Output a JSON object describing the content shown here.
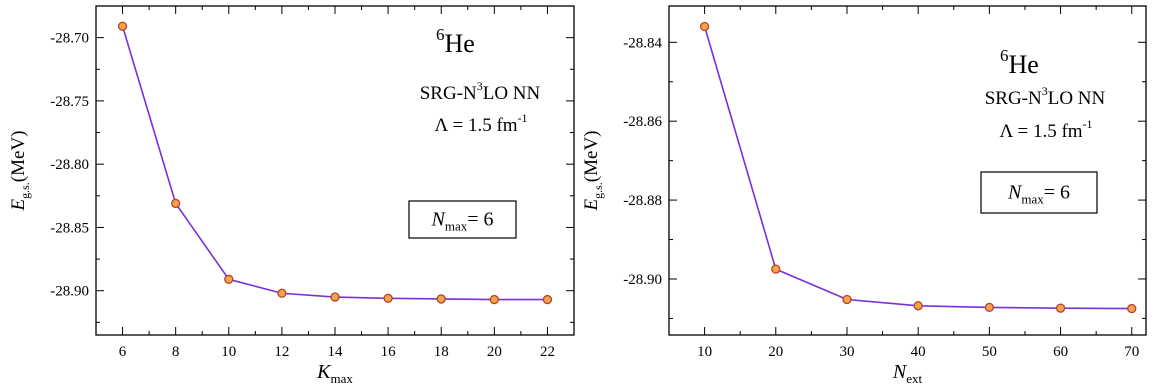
{
  "chart_data": [
    {
      "type": "line",
      "ylabel": {
        "main": "E",
        "sub": "g.s.",
        "unit": "(MeV)"
      },
      "xlabel": {
        "main": "K",
        "sub": "max"
      },
      "x": [
        6,
        8,
        10,
        12,
        14,
        16,
        18,
        20,
        22
      ],
      "y": [
        -28.691,
        -28.831,
        -28.891,
        -28.902,
        -28.905,
        -28.906,
        -28.9065,
        -28.907,
        -28.907
      ],
      "xlim": [
        5,
        23
      ],
      "ylim": [
        -28.935,
        -28.675
      ],
      "xticks": [
        6,
        8,
        10,
        12,
        14,
        16,
        18,
        20,
        22
      ],
      "xtick_labels": [
        "6",
        "8",
        "10",
        "12",
        "14",
        "16",
        "18",
        "20",
        "22"
      ],
      "yticks": [
        -28.7,
        -28.75,
        -28.8,
        -28.85,
        -28.9
      ],
      "ytick_labels": [
        "-28.70",
        "-28.75",
        "-28.80",
        "-28.85",
        "-28.90"
      ],
      "line_color": "#7b2fd8",
      "marker_fill": "#f5a34a",
      "marker_edge": "#b5442a",
      "annotations": {
        "nucleus_mass": "6",
        "nucleus_symbol": "He",
        "interaction_a": "SRG-N",
        "interaction_sup": "3",
        "interaction_b": "LO NN",
        "lambda_text": "Λ = 1.5 fm",
        "lambda_sup": "-1",
        "nmax_main": "N",
        "nmax_sub": "max",
        "nmax_value": "= 6"
      }
    },
    {
      "type": "line",
      "ylabel": {
        "main": "E",
        "sub": "g.s.",
        "unit": "(MeV)"
      },
      "xlabel": {
        "main": "N",
        "sub": "ext"
      },
      "x": [
        10,
        20,
        30,
        40,
        50,
        60,
        70
      ],
      "y": [
        -28.836,
        -28.8975,
        -28.9052,
        -28.9068,
        -28.9072,
        -28.9074,
        -28.9075
      ],
      "xlim": [
        5,
        72
      ],
      "ylim": [
        -28.9142,
        -28.8308
      ],
      "xticks": [
        10,
        20,
        30,
        40,
        50,
        60,
        70
      ],
      "xtick_labels": [
        "10",
        "20",
        "30",
        "40",
        "50",
        "60",
        "70"
      ],
      "yticks": [
        -28.84,
        -28.86,
        -28.88,
        -28.9
      ],
      "ytick_labels": [
        "-28.84",
        "-28.86",
        "-28.88",
        "-28.90"
      ],
      "line_color": "#7b2fd8",
      "marker_fill": "#f5a34a",
      "marker_edge": "#b5442a",
      "annotations": {
        "nucleus_mass": "6",
        "nucleus_symbol": "He",
        "interaction_a": "SRG-N",
        "interaction_sup": "3",
        "interaction_b": "LO NN",
        "lambda_text": "Λ = 1.5 fm",
        "lambda_sup": "-1",
        "nmax_main": "N",
        "nmax_sub": "max",
        "nmax_value": "= 6"
      }
    }
  ]
}
